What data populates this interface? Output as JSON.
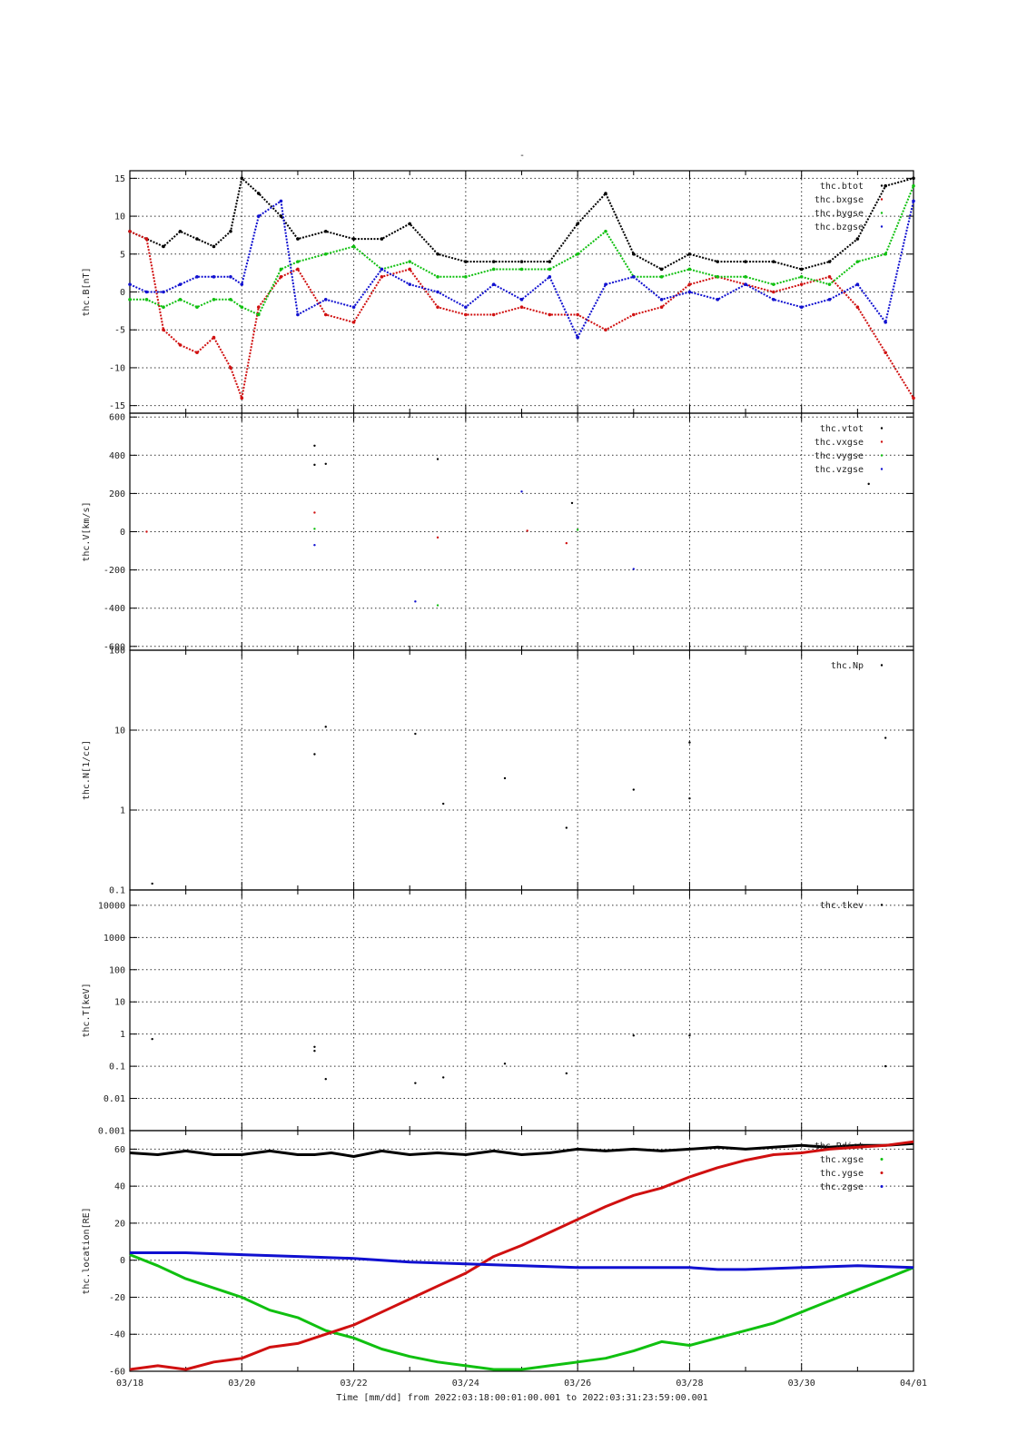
{
  "page_title": "-",
  "time_axis": {
    "range_days": [
      0,
      14
    ],
    "tick_labels": [
      "03/18",
      "03/20",
      "03/22",
      "03/24",
      "03/26",
      "03/28",
      "03/30",
      "04/01"
    ],
    "label_text": "Time [mm/dd]  from 2022:03:18:00:01:00.001  to  2022:03:31:23:59:00.001"
  },
  "colors": {
    "black": "#000000",
    "red": "#d01010",
    "green": "#10c010",
    "blue": "#1010d0",
    "grid": "#333333"
  },
  "chart_data": [
    {
      "type": "scatter",
      "id": "mag",
      "ylabel": "thc.B[nT]",
      "ylim": [
        -16,
        16
      ],
      "yticks": [
        -15,
        -10,
        -5,
        0,
        5,
        10,
        15
      ],
      "grid": true,
      "legend_position": "top-right",
      "series": [
        {
          "name": "thc.btot",
          "color": "#000000",
          "x": [
            0,
            0.3,
            0.6,
            0.9,
            1.2,
            1.5,
            1.8,
            2.0,
            2.3,
            2.7,
            3.0,
            3.5,
            4.0,
            4.5,
            5.0,
            5.5,
            6.0,
            6.5,
            7.0,
            7.5,
            8.0,
            8.5,
            9.0,
            9.5,
            10.0,
            10.5,
            11.0,
            11.5,
            12.0,
            12.5,
            13.0,
            13.5,
            14.0
          ],
          "y": [
            8,
            7,
            6,
            8,
            7,
            6,
            8,
            15,
            13,
            10,
            7,
            8,
            7,
            7,
            9,
            5,
            4,
            4,
            4,
            4,
            9,
            13,
            5,
            3,
            5,
            4,
            4,
            4,
            3,
            4,
            7,
            14,
            15
          ]
        },
        {
          "name": "thc.bxgse",
          "color": "#d01010",
          "x": [
            0,
            0.3,
            0.6,
            0.9,
            1.2,
            1.5,
            1.8,
            2.0,
            2.3,
            2.7,
            3.0,
            3.5,
            4.0,
            4.5,
            5.0,
            5.5,
            6.0,
            6.5,
            7.0,
            7.5,
            8.0,
            8.5,
            9.0,
            9.5,
            10.0,
            10.5,
            11.0,
            11.5,
            12.0,
            12.5,
            13.0,
            13.5,
            14.0
          ],
          "y": [
            8,
            7,
            -5,
            -7,
            -8,
            -6,
            -10,
            -14,
            -2,
            2,
            3,
            -3,
            -4,
            2,
            3,
            -2,
            -3,
            -3,
            -2,
            -3,
            -3,
            -5,
            -3,
            -2,
            1,
            2,
            1,
            0,
            1,
            2,
            -2,
            -8,
            -14
          ]
        },
        {
          "name": "thc.bygse",
          "color": "#10c010",
          "x": [
            0,
            0.3,
            0.6,
            0.9,
            1.2,
            1.5,
            1.8,
            2.0,
            2.3,
            2.7,
            3.0,
            3.5,
            4.0,
            4.5,
            5.0,
            5.5,
            6.0,
            6.5,
            7.0,
            7.5,
            8.0,
            8.5,
            9.0,
            9.5,
            10.0,
            10.5,
            11.0,
            11.5,
            12.0,
            12.5,
            13.0,
            13.5,
            14.0
          ],
          "y": [
            -1,
            -1,
            -2,
            -1,
            -2,
            -1,
            -1,
            -2,
            -3,
            3,
            4,
            5,
            6,
            3,
            4,
            2,
            2,
            3,
            3,
            3,
            5,
            8,
            2,
            2,
            3,
            2,
            2,
            1,
            2,
            1,
            4,
            5,
            14
          ]
        },
        {
          "name": "thc.bzgse",
          "color": "#1010d0",
          "x": [
            0,
            0.3,
            0.6,
            0.9,
            1.2,
            1.5,
            1.8,
            2.0,
            2.3,
            2.7,
            3.0,
            3.5,
            4.0,
            4.5,
            5.0,
            5.5,
            6.0,
            6.5,
            7.0,
            7.5,
            8.0,
            8.5,
            9.0,
            9.5,
            10.0,
            10.5,
            11.0,
            11.5,
            12.0,
            12.5,
            13.0,
            13.5,
            14.0
          ],
          "y": [
            1,
            0,
            0,
            1,
            2,
            2,
            2,
            1,
            10,
            12,
            -3,
            -1,
            -2,
            3,
            1,
            0,
            -2,
            1,
            -1,
            2,
            -6,
            1,
            2,
            -1,
            0,
            -1,
            1,
            -1,
            -2,
            -1,
            1,
            -4,
            12
          ]
        }
      ]
    },
    {
      "type": "scatter",
      "id": "vel",
      "ylabel": "thc.V[km/s]",
      "ylim": [
        -620,
        620
      ],
      "yticks": [
        -600,
        -400,
        -200,
        0,
        200,
        400,
        600
      ],
      "grid": true,
      "legend_position": "top-right",
      "series": [
        {
          "name": "thc.vtot",
          "color": "#000000",
          "x": [
            3.3,
            3.3,
            3.5,
            5.5,
            7.9,
            13.2
          ],
          "y": [
            450,
            350,
            355,
            380,
            150,
            250
          ]
        },
        {
          "name": "thc.vxgse",
          "color": "#d01010",
          "x": [
            0.3,
            3.3,
            5.5,
            7.1,
            7.8
          ],
          "y": [
            0,
            100,
            -30,
            5,
            -60
          ]
        },
        {
          "name": "thc.vygse",
          "color": "#10c010",
          "x": [
            3.3,
            5.5,
            8.0
          ],
          "y": [
            15,
            -385,
            10
          ]
        },
        {
          "name": "thc.vzgse",
          "color": "#1010d0",
          "x": [
            3.3,
            5.1,
            7.0,
            9.0
          ],
          "y": [
            -70,
            -365,
            210,
            -195
          ]
        }
      ]
    },
    {
      "type": "scatter",
      "id": "dens",
      "ylabel": "thc.N[1/cc]",
      "ylim": [
        0.1,
        100
      ],
      "log_scale_y": true,
      "yticks": [
        0.1,
        1,
        10,
        100
      ],
      "grid": true,
      "legend_position": "top-right",
      "series": [
        {
          "name": "thc.Np",
          "color": "#000000",
          "x": [
            0.4,
            3.3,
            3.5,
            5.1,
            5.6,
            6.7,
            7.8,
            9.0,
            10.0,
            10.0,
            13.5
          ],
          "y": [
            0.12,
            5.0,
            11.0,
            9.0,
            1.2,
            2.5,
            0.6,
            1.8,
            7.0,
            1.4,
            8.0
          ]
        }
      ]
    },
    {
      "type": "scatter",
      "id": "temp",
      "ylabel": "thc.T[keV]",
      "ylim": [
        0.001,
        30000
      ],
      "log_scale_y": true,
      "yticks": [
        0.001,
        0.01,
        0.1,
        1,
        10,
        100,
        1000,
        10000
      ],
      "ytick_labels": [
        "0.001",
        "0.01",
        "0.1",
        "1",
        "10",
        "100",
        "1000",
        "10000"
      ],
      "grid": true,
      "legend_position": "top-right",
      "series": [
        {
          "name": "thc.tkev",
          "color": "#000000",
          "x": [
            0.4,
            3.3,
            3.3,
            3.5,
            5.1,
            5.6,
            6.7,
            7.8,
            9.0,
            10.0,
            13.5
          ],
          "y": [
            0.7,
            0.4,
            0.3,
            0.04,
            0.03,
            0.045,
            0.12,
            0.06,
            0.9,
            0.9,
            0.1
          ]
        }
      ]
    },
    {
      "type": "line",
      "id": "loc",
      "ylabel": "thc.location[RE]",
      "ylim": [
        -60,
        70
      ],
      "yticks": [
        -60,
        -40,
        -20,
        0,
        20,
        40,
        60
      ],
      "grid": true,
      "legend_position": "top-right",
      "series": [
        {
          "name": "thc.Rdist",
          "color": "#000000",
          "x": [
            0,
            0.5,
            1.0,
            1.5,
            2.0,
            2.5,
            3.0,
            3.3,
            3.6,
            4.0,
            4.5,
            5.0,
            5.5,
            6.0,
            6.5,
            7.0,
            7.5,
            8.0,
            8.5,
            9.0,
            9.5,
            10.0,
            10.5,
            11.0,
            11.5,
            12.0,
            12.5,
            13.0,
            13.5,
            14.0
          ],
          "y": [
            58,
            57,
            59,
            57,
            57,
            59,
            57,
            57,
            58,
            56,
            59,
            57,
            58,
            57,
            59,
            57,
            58,
            60,
            59,
            60,
            59,
            60,
            61,
            60,
            61,
            62,
            61,
            62,
            62,
            63
          ]
        },
        {
          "name": "thc.xgse",
          "color": "#10c010",
          "x": [
            0,
            0.5,
            1.0,
            1.5,
            2.0,
            2.5,
            3.0,
            3.5,
            4.0,
            4.5,
            5.0,
            5.5,
            6.0,
            6.5,
            7.0,
            7.5,
            8.0,
            8.5,
            9.0,
            9.5,
            10.0,
            10.5,
            11.0,
            11.5,
            12.0,
            12.5,
            13.0,
            13.5,
            14.0
          ],
          "y": [
            3,
            -3,
            -10,
            -15,
            -20,
            -27,
            -31,
            -38,
            -42,
            -48,
            -52,
            -55,
            -57,
            -59,
            -59,
            -57,
            -55,
            -53,
            -49,
            -44,
            -46,
            -42,
            -38,
            -34,
            -28,
            -22,
            -16,
            -10,
            -4
          ]
        },
        {
          "name": "thc.ygse",
          "color": "#d01010",
          "x": [
            0,
            0.5,
            1.0,
            1.5,
            2.0,
            2.5,
            3.0,
            3.5,
            4.0,
            4.5,
            5.0,
            5.5,
            6.0,
            6.5,
            7.0,
            7.5,
            8.0,
            8.5,
            9.0,
            9.5,
            10.0,
            10.5,
            11.0,
            11.5,
            12.0,
            12.5,
            13.0,
            13.5,
            14.0
          ],
          "y": [
            -59,
            -57,
            -59,
            -55,
            -53,
            -47,
            -45,
            -40,
            -35,
            -28,
            -21,
            -14,
            -7,
            2,
            8,
            15,
            22,
            29,
            35,
            39,
            45,
            50,
            54,
            57,
            58,
            60,
            61,
            62,
            64
          ]
        },
        {
          "name": "thc.zgse",
          "color": "#1010d0",
          "x": [
            0,
            1.0,
            2.0,
            3.0,
            4.0,
            5.0,
            6.0,
            7.0,
            8.0,
            9.0,
            10.0,
            10.5,
            11.0,
            12.0,
            13.0,
            14.0
          ],
          "y": [
            4,
            4,
            3,
            2,
            1,
            -1,
            -2,
            -3,
            -4,
            -4,
            -4,
            -5,
            -5,
            -4,
            -3,
            -4
          ]
        }
      ]
    }
  ]
}
